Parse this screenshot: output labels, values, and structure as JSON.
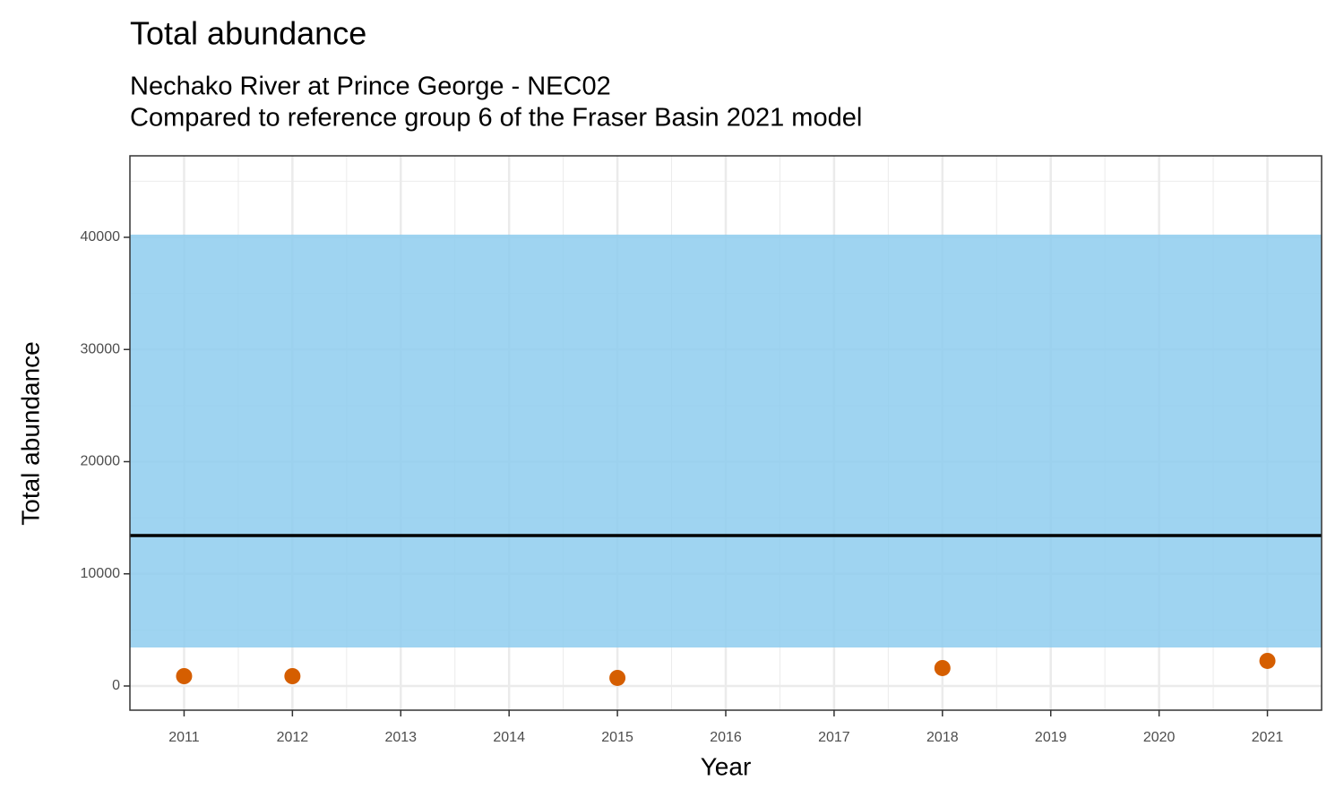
{
  "chart_data": {
    "type": "scatter",
    "title": "Total abundance",
    "subtitle": [
      "Nechako River at Prince George - NEC02",
      "Compared to reference group 6 of the Fraser Basin 2021 model"
    ],
    "x_label": "Year",
    "y_label": "Total abundance",
    "x": [
      2011,
      2012,
      2015,
      2018,
      2021
    ],
    "series": [
      {
        "color": "#d55e00",
        "values": [
          878,
          878,
          719,
          1597,
          2236
        ]
      }
    ],
    "reference_band": {
      "lower": 3433,
      "upper": 40240,
      "color": "#8ecdee"
    },
    "reference_line": {
      "value": 13413,
      "color": "#000000"
    },
    "xlim": [
      2010.5,
      2021.5
    ],
    "xticks": [
      2011,
      2012,
      2013,
      2014,
      2015,
      2016,
      2017,
      2018,
      2019,
      2020,
      2021
    ],
    "ylim": [
      -2156,
      47265
    ],
    "yticks": [
      0,
      10000,
      20000,
      30000,
      40000
    ],
    "grid": true,
    "minor_grid": true
  }
}
